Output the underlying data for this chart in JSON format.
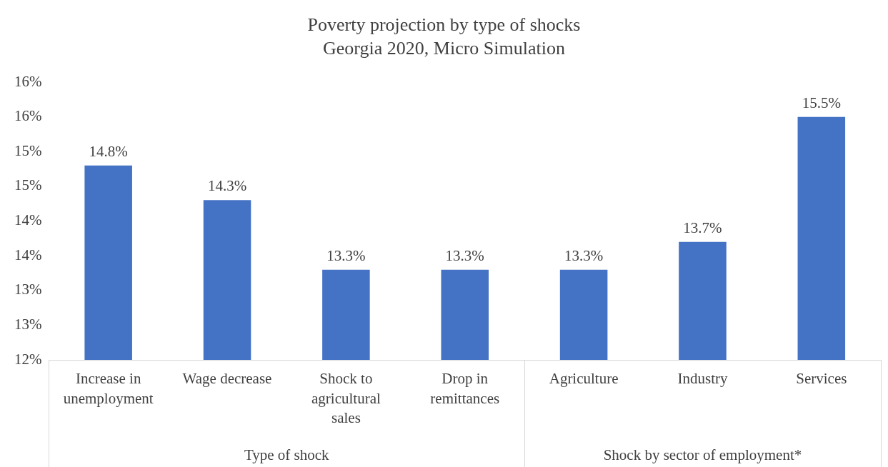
{
  "chart_data": {
    "type": "bar",
    "title": "Poverty projection by type of shocks",
    "subtitle": "Georgia 2020, Micro Simulation",
    "categories": [
      "Increase in unemployment",
      "Wage decrease",
      "Shock to agricultural sales",
      "Drop in remittances",
      "Agriculture",
      "Industry",
      "Services"
    ],
    "values": [
      14.8,
      14.3,
      13.3,
      13.3,
      13.3,
      13.7,
      15.5
    ],
    "color": "#4472c4",
    "data_labels": true,
    "value_labels": [
      "14.8%",
      "14.3%",
      "13.3%",
      "13.3%",
      "13.3%",
      "13.7%",
      "15.5%"
    ],
    "ylim": [
      12,
      16
    ],
    "yticks": [
      {
        "value": 12,
        "label": "12%"
      },
      {
        "value": 12.5,
        "label": "13%"
      },
      {
        "value": 13,
        "label": "13%"
      },
      {
        "value": 13.5,
        "label": "14%"
      },
      {
        "value": 14,
        "label": "14%"
      },
      {
        "value": 14.5,
        "label": "15%"
      },
      {
        "value": 15,
        "label": "15%"
      },
      {
        "value": 15.5,
        "label": "16%"
      },
      {
        "value": 16,
        "label": "16%"
      }
    ],
    "grid": false,
    "legend": false,
    "annotations": [
      "Type of shock",
      "Shock by sector of employment*"
    ]
  }
}
